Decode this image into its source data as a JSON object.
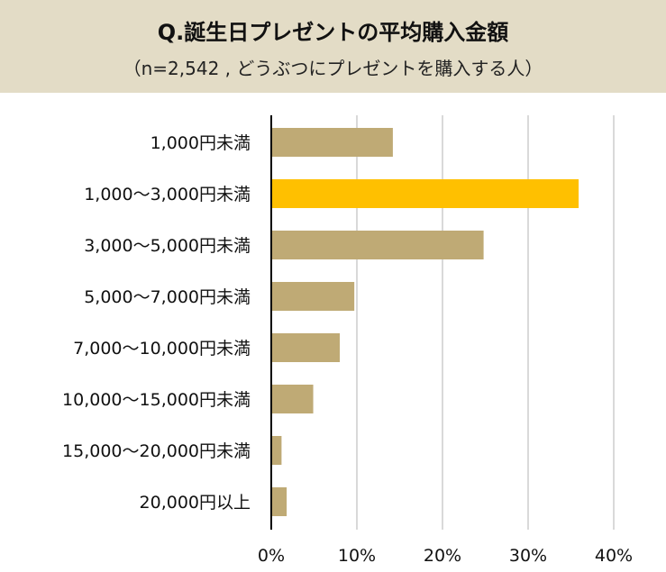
{
  "header": {
    "title": "Q.誕生日プレゼントの平均購入金額",
    "subtitle": "（n=2,542 , どうぶつにプレゼントを購入する人）"
  },
  "chart_data": {
    "type": "bar",
    "orientation": "horizontal",
    "title": "Q.誕生日プレゼントの平均購入金額",
    "subtitle": "（n=2,542 , どうぶつにプレゼントを購入する人）",
    "categories": [
      "1,000円未満",
      "1,000～3,000円未満",
      "3,000～5,000円未満",
      "5,000～7,000円未満",
      "7,000～10,000円未満",
      "10,000～15,000円未満",
      "15,000～20,000円未満",
      "20,000円以上"
    ],
    "values": [
      14.2,
      35.9,
      24.8,
      9.7,
      8.0,
      4.9,
      1.2,
      1.8
    ],
    "highlight_index": 1,
    "xlim": [
      0,
      40
    ],
    "xticks": [
      0,
      10,
      20,
      30,
      40
    ],
    "tick_labels": [
      "0%",
      "10%",
      "20%",
      "30%",
      "40%"
    ],
    "grid": true,
    "colors": {
      "bar": "#bfaa75",
      "highlight": "#ffc000",
      "grid": "#d9d9d9",
      "axis": "#000000",
      "header_bg": "#e3dcc6"
    }
  }
}
